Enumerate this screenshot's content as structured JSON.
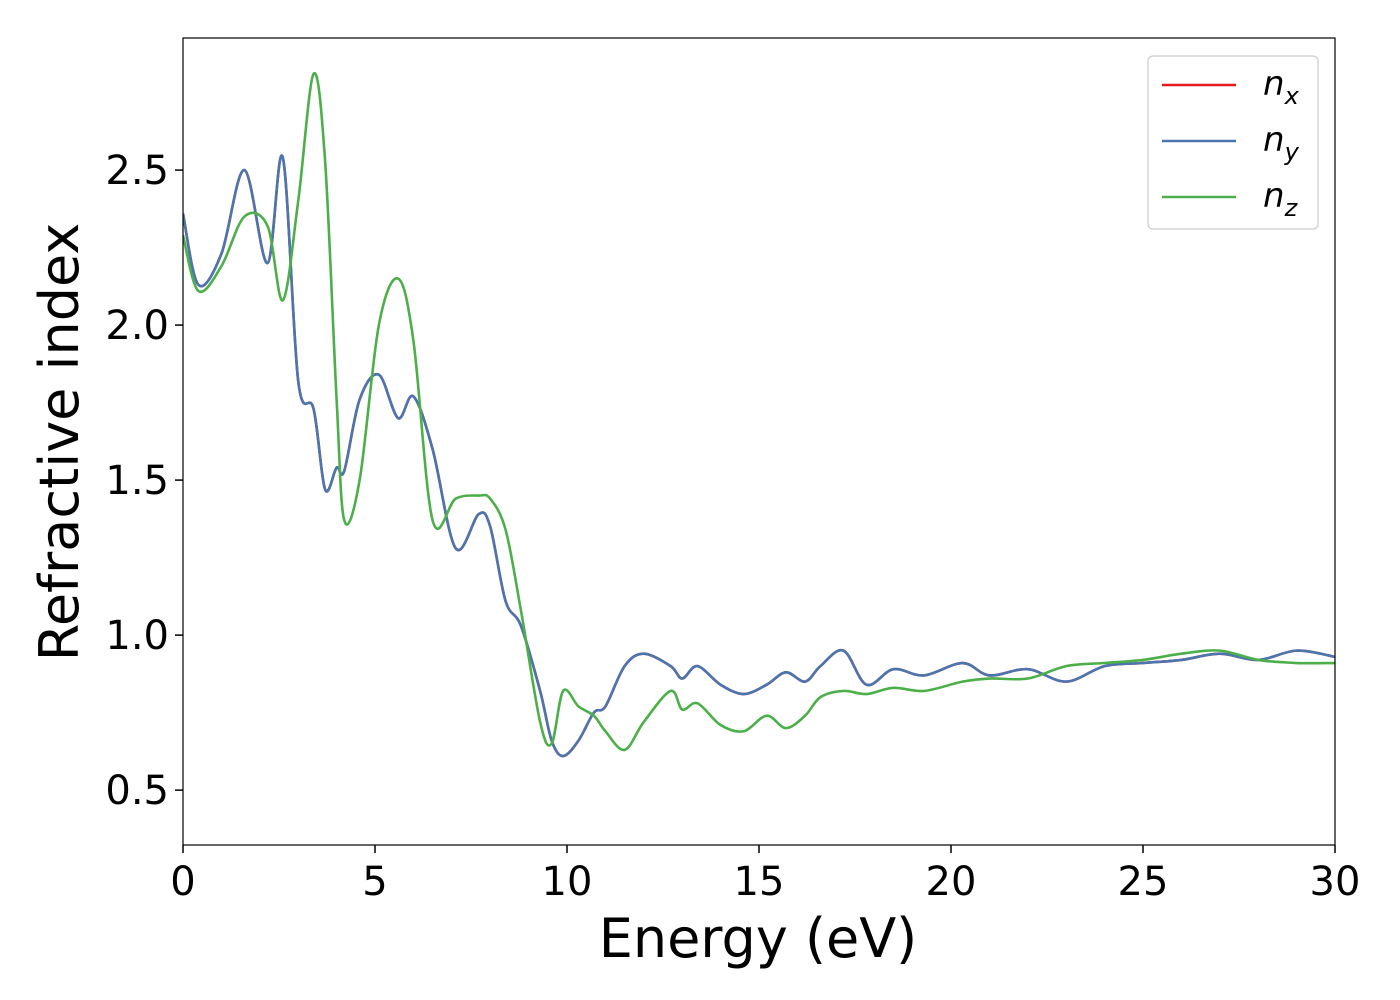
{
  "chart_data": {
    "type": "line",
    "xlabel": "Energy (eV)",
    "ylabel": "Refractive index",
    "x": [
      0,
      0.4,
      1.0,
      1.6,
      2.2,
      2.6,
      3.0,
      3.4,
      3.7,
      4.0,
      4.2,
      4.6,
      5.1,
      5.6,
      6.0,
      6.5,
      7.1,
      7.7,
      8.0,
      8.4,
      8.8,
      9.3,
      9.6,
      9.9,
      10.3,
      10.7,
      11.0,
      11.5,
      12.0,
      12.7,
      13.0,
      13.4,
      14.0,
      14.6,
      15.2,
      15.7,
      16.2,
      16.6,
      17.2,
      17.8,
      18.5,
      19.3,
      20.3,
      21.0,
      22.0,
      23.0,
      24.0,
      25.0,
      26.0,
      27.0,
      28.0,
      29.0,
      30
    ],
    "series": [
      {
        "name": "nx",
        "color": "#e41a1c",
        "values": [
          2.36,
          2.13,
          2.23,
          2.5,
          2.2,
          2.54,
          1.82,
          1.73,
          1.47,
          1.54,
          1.53,
          1.76,
          1.84,
          1.7,
          1.77,
          1.6,
          1.28,
          1.39,
          1.35,
          1.11,
          1.03,
          0.82,
          0.66,
          0.61,
          0.66,
          0.75,
          0.77,
          0.9,
          0.94,
          0.9,
          0.86,
          0.9,
          0.84,
          0.81,
          0.84,
          0.88,
          0.85,
          0.9,
          0.95,
          0.84,
          0.89,
          0.87,
          0.91,
          0.87,
          0.89,
          0.85,
          0.9,
          0.91,
          0.92,
          0.94,
          0.92,
          0.95,
          0.93
        ]
      },
      {
        "name": "ny",
        "color": "#4a76b0",
        "values": [
          2.36,
          2.13,
          2.23,
          2.5,
          2.2,
          2.54,
          1.82,
          1.73,
          1.47,
          1.54,
          1.53,
          1.76,
          1.84,
          1.7,
          1.77,
          1.6,
          1.28,
          1.39,
          1.35,
          1.11,
          1.03,
          0.82,
          0.66,
          0.61,
          0.66,
          0.75,
          0.77,
          0.9,
          0.94,
          0.9,
          0.86,
          0.9,
          0.84,
          0.81,
          0.84,
          0.88,
          0.85,
          0.9,
          0.95,
          0.84,
          0.89,
          0.87,
          0.91,
          0.87,
          0.89,
          0.85,
          0.9,
          0.91,
          0.92,
          0.94,
          0.92,
          0.95,
          0.93
        ]
      },
      {
        "name": "nz",
        "color": "#4daf4a",
        "values": [
          2.29,
          2.11,
          2.19,
          2.35,
          2.32,
          2.08,
          2.4,
          2.81,
          2.53,
          1.76,
          1.37,
          1.5,
          2.0,
          2.15,
          1.95,
          1.37,
          1.44,
          1.45,
          1.44,
          1.34,
          1.08,
          0.72,
          0.65,
          0.82,
          0.77,
          0.74,
          0.69,
          0.63,
          0.72,
          0.82,
          0.76,
          0.78,
          0.71,
          0.69,
          0.74,
          0.7,
          0.74,
          0.8,
          0.82,
          0.81,
          0.83,
          0.82,
          0.85,
          0.86,
          0.86,
          0.9,
          0.91,
          0.92,
          0.94,
          0.95,
          0.92,
          0.91,
          0.91
        ]
      }
    ],
    "xlim": [
      0,
      30
    ],
    "xticks": [
      0,
      5,
      10,
      15,
      20,
      25,
      30
    ],
    "ylim": [
      0.323,
      2.926
    ],
    "yticks": [
      0.5,
      {
        "value": 1.0,
        "label": "1.0"
      },
      1.5,
      {
        "value": 2.0,
        "label": "2.0"
      },
      2.5
    ],
    "legend": "upper right"
  }
}
